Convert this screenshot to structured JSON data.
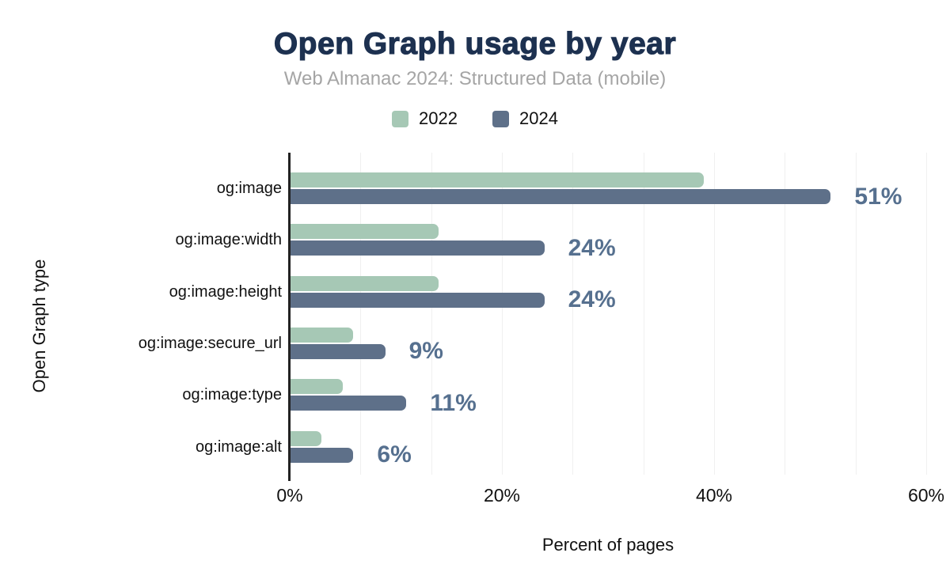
{
  "chart_data": {
    "type": "bar",
    "orientation": "horizontal",
    "title": "Open Graph usage by year",
    "subtitle": "Web Almanac 2024: Structured Data (mobile)",
    "xlabel": "Percent of pages",
    "ylabel": "Open Graph type",
    "categories": [
      "og:image",
      "og:image:width",
      "og:image:height",
      "og:image:secure_url",
      "og:image:type",
      "og:image:alt"
    ],
    "series": [
      {
        "name": "2022",
        "color": "#a6c8b5",
        "values": [
          39,
          14,
          14,
          6,
          5,
          3
        ]
      },
      {
        "name": "2024",
        "color": "#5e7089",
        "values": [
          51,
          24,
          24,
          9,
          11,
          6
        ],
        "data_labels": [
          "51%",
          "24%",
          "24%",
          "9%",
          "11%",
          "6%"
        ]
      }
    ],
    "x_ticks": [
      "0%",
      "20%",
      "40%",
      "60%"
    ],
    "xlim": [
      0,
      60
    ],
    "grid": {
      "show": true,
      "minor_divisions_per_major": 3,
      "color": "#f0f0f0"
    },
    "legend_position": "top",
    "colors": {
      "title": "#1d3150",
      "subtitle": "#a5a5a5",
      "value_label": "#56708f",
      "axis_line": "#222222",
      "background": "#ffffff"
    }
  }
}
